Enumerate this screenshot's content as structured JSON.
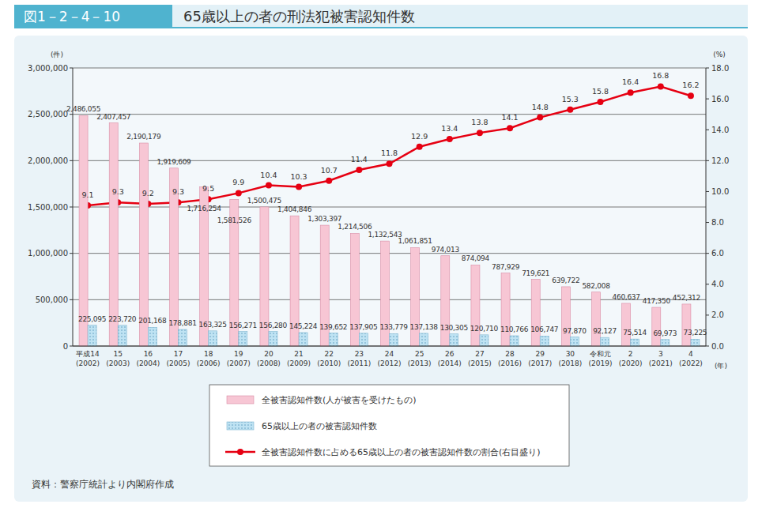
{
  "chart_data": {
    "type": "bar",
    "figure_number": "図1－2－4－10",
    "title": "65歳以上の者の刑法犯被害認知件数",
    "source": "資料：警察庁統計より内閣府作成",
    "ylabel": "(件)",
    "y2label": "(%)",
    "xlabel": "(年)",
    "categories": [
      "平成14\n(2002)",
      "15\n(2003)",
      "16\n(2004)",
      "17\n(2005)",
      "18\n(2006)",
      "19\n(2007)",
      "20\n(2008)",
      "21\n(2009)",
      "22\n(2010)",
      "23\n(2011)",
      "24\n(2012)",
      "25\n(2013)",
      "26\n(2014)",
      "27\n(2015)",
      "28\n(2016)",
      "29\n(2017)",
      "30\n(2018)",
      "令和元\n(2019)",
      "2\n(2020)",
      "3\n(2021)",
      "4\n(2022)"
    ],
    "series": [
      {
        "name": "全被害認知件数(人が被害を受けたもの)",
        "type": "bar",
        "color": "#f7c6d4",
        "values": [
          2486055,
          2407457,
          2190179,
          1919609,
          1716254,
          1581526,
          1500475,
          1404846,
          1303397,
          1214506,
          1132543,
          1061851,
          974013,
          874094,
          787929,
          719621,
          639722,
          582008,
          460637,
          417350,
          452312
        ],
        "value_labels": [
          "2,486,055",
          "2,407,457",
          "2,190,179",
          "1,919,609",
          "1,716,254",
          "1,581,526",
          "1,500,475",
          "1,404,846",
          "1,303,397",
          "1,214,506",
          "1,132,543",
          "1,061,851",
          "974,013",
          "874,094",
          "787,929",
          "719,621",
          "639,722",
          "582,008",
          "460,637",
          "417,350",
          "452,312"
        ]
      },
      {
        "name": "65歳以上の者の被害認知件数",
        "type": "bar",
        "color": "#bfe3f3",
        "values": [
          225095,
          223720,
          201168,
          178881,
          163325,
          156271,
          156280,
          145224,
          139652,
          137905,
          133779,
          137138,
          130305,
          120710,
          110766,
          106747,
          97870,
          92127,
          75514,
          69973,
          73225
        ],
        "value_labels": [
          "225,095",
          "223,720",
          "201,168",
          "178,881",
          "163,325",
          "156,271",
          "156,280",
          "145,224",
          "139,652",
          "137,905",
          "133,779",
          "137,138",
          "130,305",
          "120,710",
          "110,766",
          "106,747",
          "97,870",
          "92,127",
          "75,514",
          "69,973",
          "73,225"
        ]
      },
      {
        "name": "全被害認知件数に占める65歳以上の者の被害認知件数の割合(右目盛り)",
        "type": "line",
        "axis": "y2",
        "color": "#e60012",
        "marker": "circle",
        "values": [
          9.1,
          9.3,
          9.2,
          9.3,
          9.5,
          9.9,
          10.4,
          10.3,
          10.7,
          11.4,
          11.8,
          12.9,
          13.4,
          13.8,
          14.1,
          14.8,
          15.3,
          15.8,
          16.4,
          16.8,
          16.2
        ]
      }
    ],
    "ylim": [
      0,
      3000000
    ],
    "yticks": [
      0,
      {
        "value": 500000,
        "label": "500,000"
      },
      {
        "value": 1000000,
        "label": "1,000,000"
      },
      {
        "value": 1500000,
        "label": "1,500,000"
      },
      {
        "value": 2000000,
        "label": "2,000,000"
      },
      {
        "value": 2500000,
        "label": "2,500,000"
      },
      {
        "value": 3000000,
        "label": "3,000,000"
      }
    ],
    "y2lim": [
      0,
      18
    ],
    "y2ticks": [
      {
        "value": 0,
        "label": "0.0"
      },
      {
        "value": 2,
        "label": "2.0"
      },
      {
        "value": 4,
        "label": "4.0"
      },
      {
        "value": 6,
        "label": "6.0"
      },
      {
        "value": 8,
        "label": "8.0"
      },
      {
        "value": 10,
        "label": "10.0"
      },
      {
        "value": 12,
        "label": "12.0"
      },
      {
        "value": 14,
        "label": "14.0"
      },
      {
        "value": 16,
        "label": "16.0"
      },
      {
        "value": 18,
        "label": "18.0"
      }
    ],
    "grid": true,
    "legend": "bottom",
    "data_labels": true
  }
}
